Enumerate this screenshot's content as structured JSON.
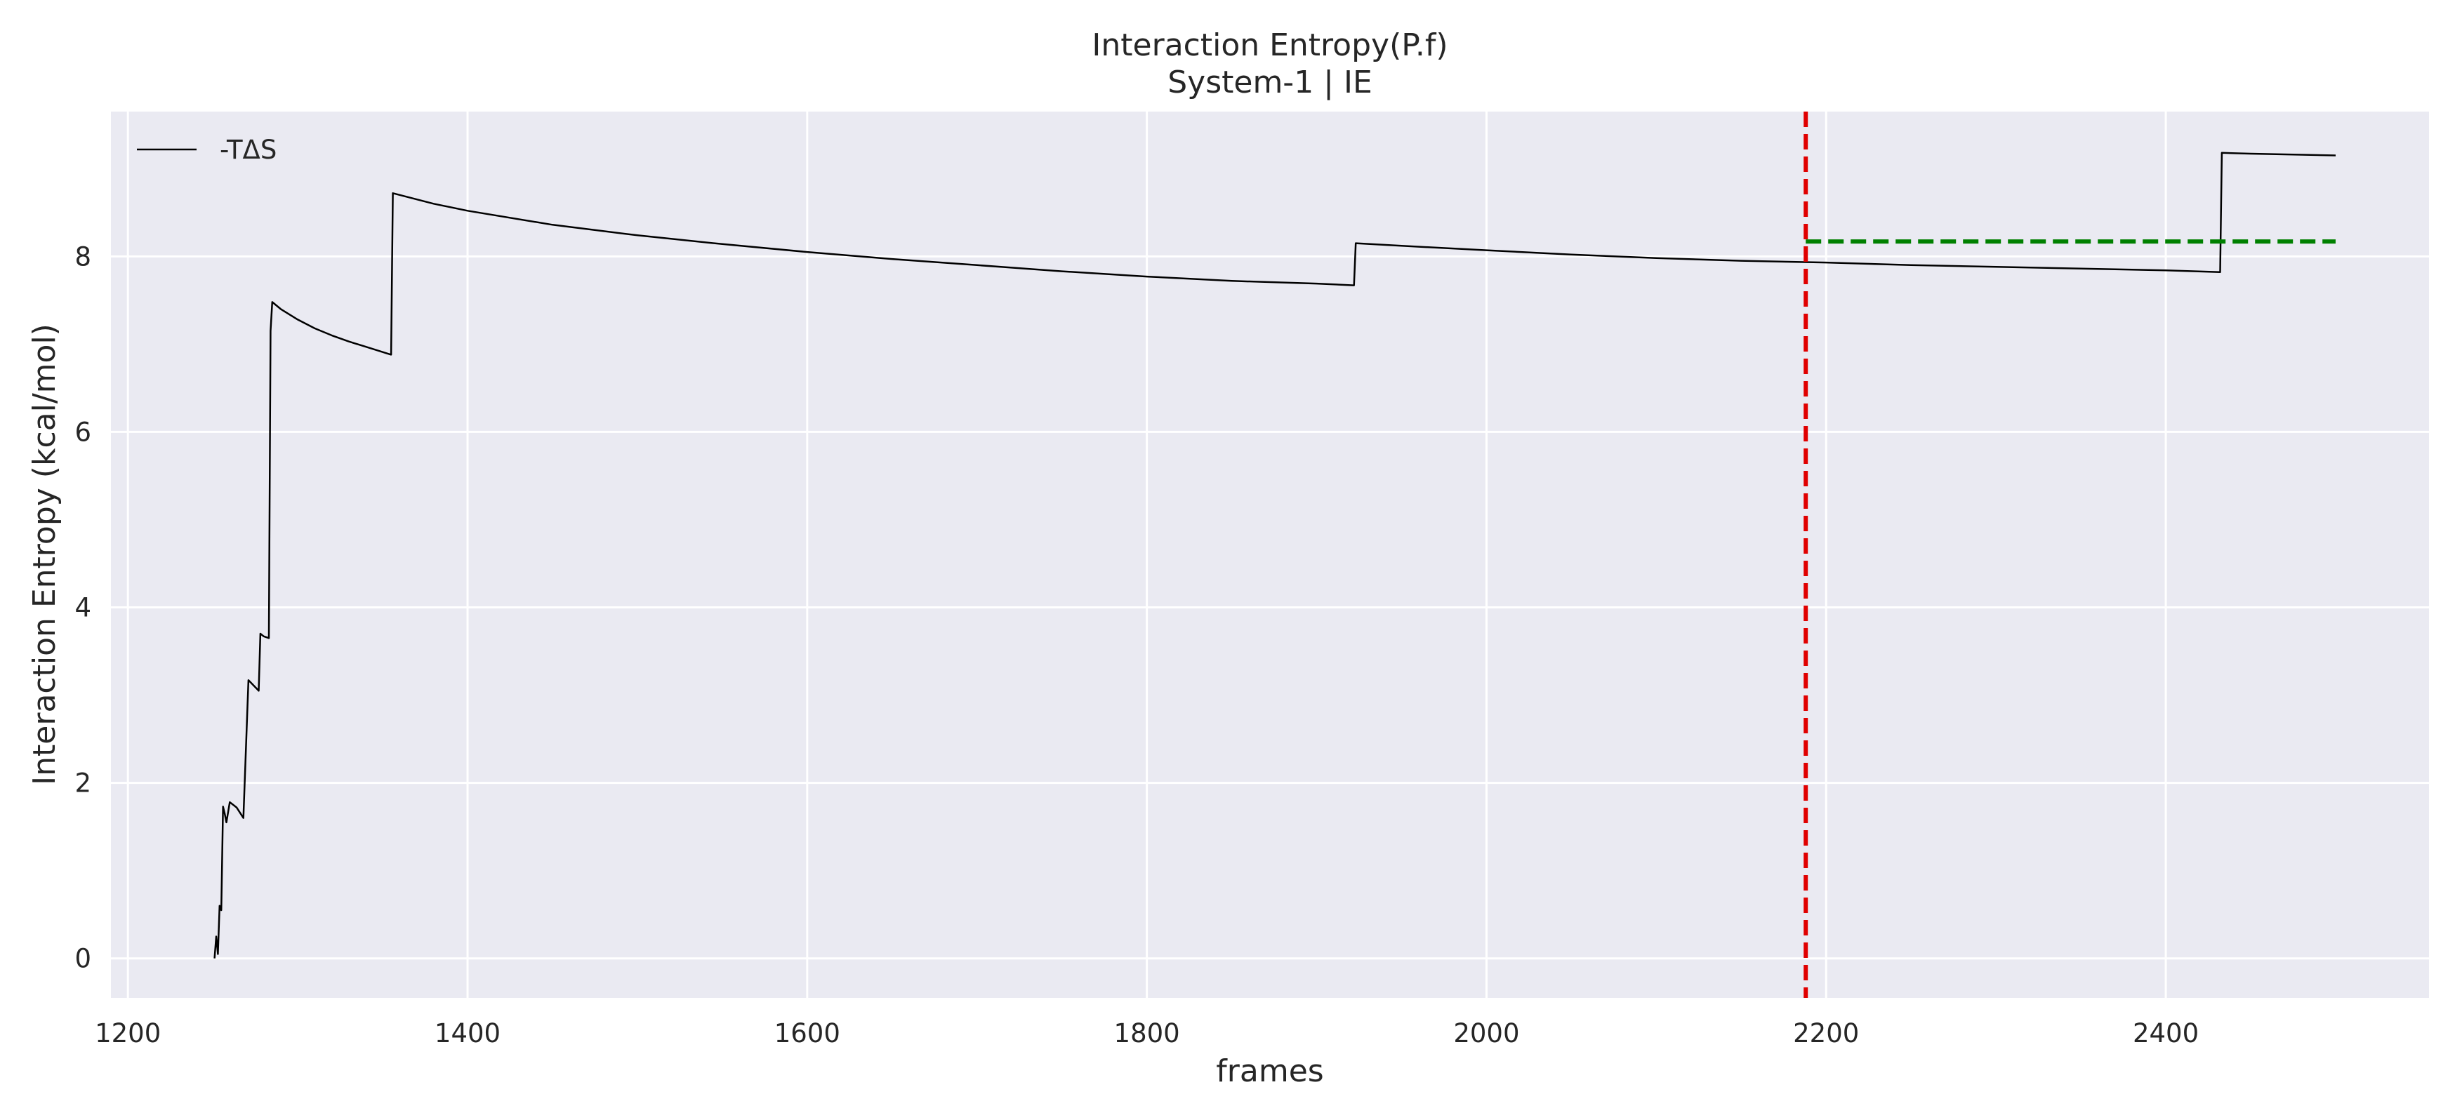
{
  "chart_data": {
    "type": "line",
    "title": "Interaction Entropy(P.f)",
    "subtitle": "System-1 | IE",
    "xlabel": "frames",
    "ylabel": "Interaction Entropy (kcal/mol)",
    "xlim": [
      1190,
      2555
    ],
    "ylim": [
      -0.45,
      9.65
    ],
    "xticks": [
      1200,
      1400,
      1600,
      1800,
      2000,
      2200,
      2400
    ],
    "yticks": [
      0,
      2,
      4,
      6,
      8
    ],
    "grid": true,
    "legend_position": "top-left",
    "series": [
      {
        "name": "-TΔS",
        "color": "#000000",
        "x": [
          1251,
          1252,
          1253,
          1254,
          1255,
          1256,
          1257,
          1258,
          1260,
          1262,
          1264,
          1268,
          1271,
          1272,
          1277,
          1278,
          1280,
          1283,
          1284,
          1285,
          1290,
          1300,
          1310,
          1320,
          1330,
          1340,
          1355,
          1356,
          1380,
          1400,
          1450,
          1500,
          1550,
          1600,
          1650,
          1700,
          1750,
          1800,
          1850,
          1900,
          1922,
          1923,
          1950,
          2000,
          2050,
          2100,
          2150,
          2200,
          2250,
          2300,
          2350,
          2400,
          2432,
          2433,
          2450,
          2500
        ],
        "values": [
          0.0,
          0.25,
          0.05,
          0.6,
          0.55,
          1.73,
          1.65,
          1.55,
          1.78,
          1.75,
          1.72,
          1.6,
          3.17,
          3.15,
          3.05,
          3.7,
          3.67,
          3.65,
          7.15,
          7.48,
          7.4,
          7.28,
          7.18,
          7.1,
          7.03,
          6.97,
          6.88,
          8.72,
          8.6,
          8.52,
          8.36,
          8.24,
          8.14,
          8.05,
          7.97,
          7.9,
          7.83,
          7.77,
          7.72,
          7.69,
          7.67,
          8.15,
          8.12,
          8.07,
          8.02,
          7.98,
          7.95,
          7.93,
          7.9,
          7.88,
          7.86,
          7.84,
          7.82,
          9.18,
          9.17,
          9.15
        ]
      }
    ],
    "reference_lines": [
      {
        "orientation": "vertical",
        "x": 2188,
        "color": "#e00000",
        "style": "dashed"
      },
      {
        "orientation": "horizontal",
        "y": 8.17,
        "x_range": [
          2188,
          2500
        ],
        "color": "#008000",
        "style": "dashed"
      }
    ]
  }
}
